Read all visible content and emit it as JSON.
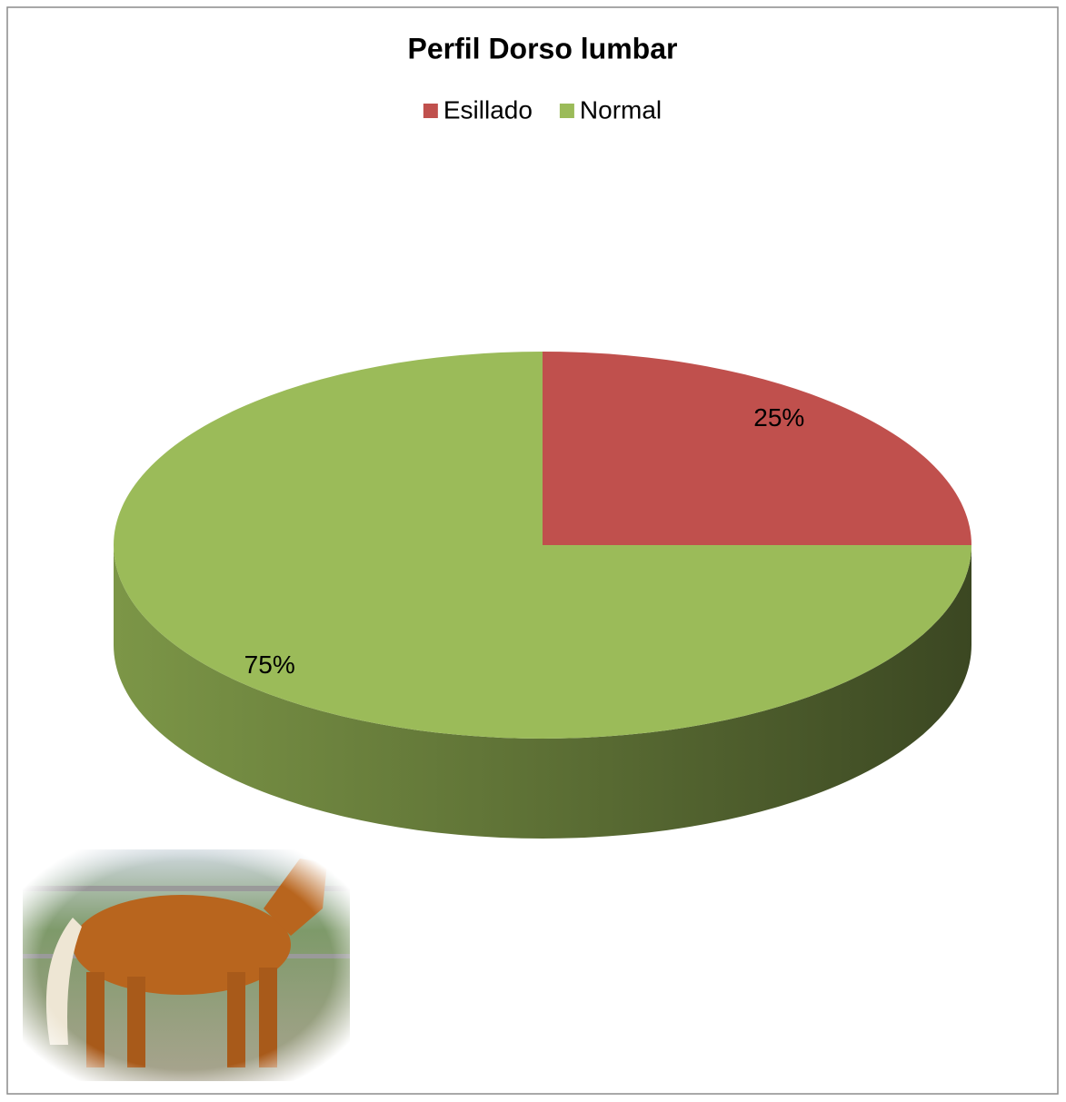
{
  "chart_data": {
    "type": "pie",
    "title": "Perfil Dorso lumbar",
    "categories": [
      "Esillado",
      "Normal"
    ],
    "series": [
      {
        "name": "Perfil Dorso lumbar",
        "values": [
          25,
          75
        ],
        "value_labels": [
          "25%",
          "75%"
        ]
      }
    ],
    "colors": [
      "#c0504d",
      "#9bbb59"
    ],
    "legend": "top"
  }
}
